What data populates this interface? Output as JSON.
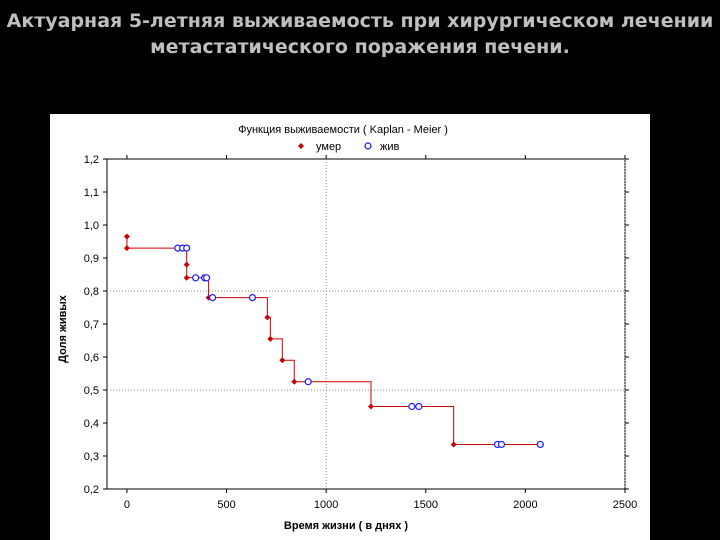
{
  "slide": {
    "title_line1": "Актуарная 5-летняя выживаемость при хирургическом лечении",
    "title_line2": "метастатического поражения печени."
  },
  "colors": {
    "background": "#000000",
    "title": "#bfbfbf",
    "line": "#cc0000",
    "censored": "#1a1aff"
  },
  "chart_data": {
    "type": "line",
    "title": "Функция выживаемости ( Kaplan - Meier )",
    "xlabel": "Время жизни ( в днях )",
    "ylabel": "Доля живых",
    "xlim": [
      -100,
      2500
    ],
    "ylim": [
      0.2,
      1.2
    ],
    "x_ticks": [
      "0",
      "500",
      "1000",
      "1500",
      "2000",
      "2500"
    ],
    "y_ticks": [
      "1,2",
      "1,1",
      "1,0",
      "0,9",
      "0,8",
      "0,7",
      "0,6",
      "0,5",
      "0,4",
      "0,3",
      "0,2"
    ],
    "grid": "dotted",
    "legend_position": "top",
    "legend": {
      "event": "умер",
      "censored": "жив"
    },
    "series": [
      {
        "name": "умер",
        "marker": "diamond",
        "points": [
          [
            0,
            0.965
          ],
          [
            0,
            0.93
          ],
          [
            300,
            0.88
          ],
          [
            300,
            0.84
          ],
          [
            410,
            0.78
          ],
          [
            705,
            0.72
          ],
          [
            720,
            0.655
          ],
          [
            780,
            0.59
          ],
          [
            840,
            0.525
          ],
          [
            1225,
            0.45
          ],
          [
            1640,
            0.335
          ]
        ]
      },
      {
        "name": "жив",
        "marker": "circle",
        "points": [
          [
            255,
            0.93
          ],
          [
            280,
            0.93
          ],
          [
            300,
            0.93
          ],
          [
            345,
            0.84
          ],
          [
            390,
            0.84
          ],
          [
            400,
            0.84
          ],
          [
            430,
            0.78
          ],
          [
            630,
            0.78
          ],
          [
            910,
            0.525
          ],
          [
            1430,
            0.45
          ],
          [
            1465,
            0.45
          ],
          [
            1860,
            0.335
          ],
          [
            1880,
            0.335
          ],
          [
            2075,
            0.335
          ]
        ]
      }
    ],
    "km_steps": [
      [
        0,
        0.93
      ],
      [
        300,
        0.84
      ],
      [
        410,
        0.78
      ],
      [
        705,
        0.72
      ],
      [
        720,
        0.655
      ],
      [
        780,
        0.59
      ],
      [
        840,
        0.525
      ],
      [
        1225,
        0.45
      ],
      [
        1640,
        0.335
      ]
    ],
    "km_end_x": 2075
  }
}
